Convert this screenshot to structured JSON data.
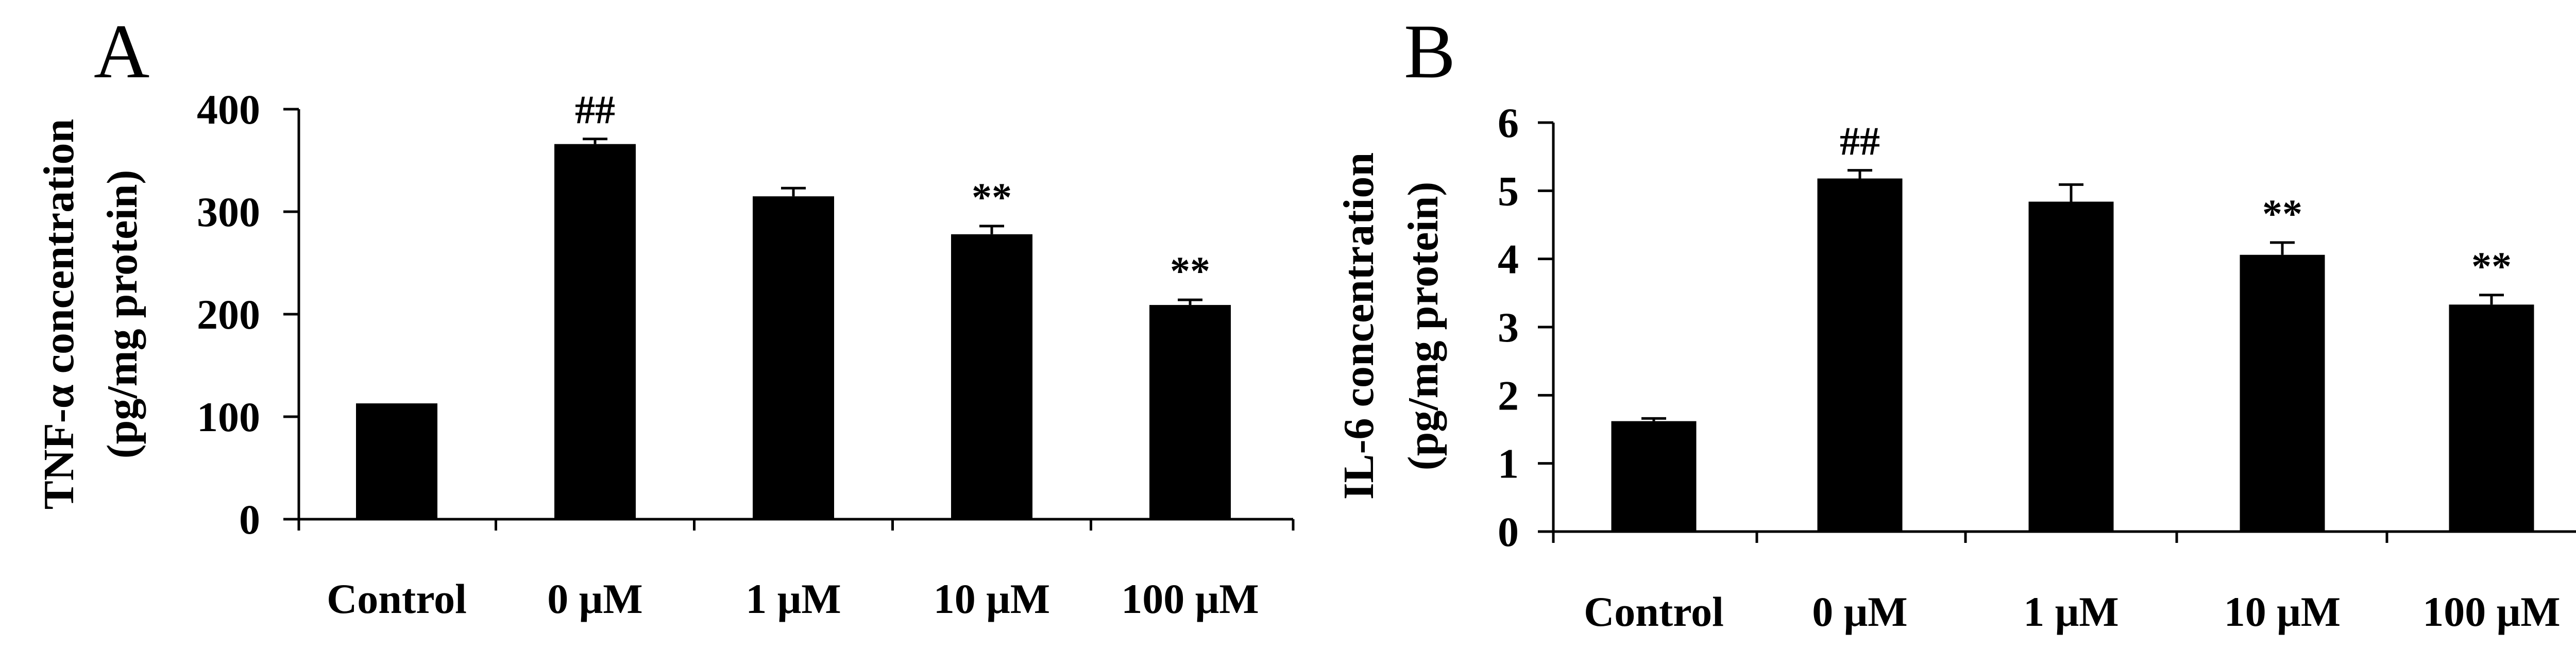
{
  "chart_data": [
    {
      "type": "bar",
      "panel_label": "A",
      "title": "",
      "xlabel": "",
      "ylabel_lines": [
        "TNF-α concentration",
        "(pg/mg protein)"
      ],
      "categories": [
        "Control",
        "0 μM",
        "1 μM",
        "10 μM",
        "100 μM"
      ],
      "values": [
        113,
        366,
        315,
        278,
        209
      ],
      "errors": [
        0,
        5,
        8,
        8,
        5
      ],
      "annotations": [
        "",
        "##",
        "",
        "**",
        "**"
      ],
      "ylim": [
        0,
        400
      ],
      "yticks": [
        0,
        100,
        200,
        300,
        400
      ],
      "bar_color": "#000000",
      "grid": false,
      "legend": "none"
    },
    {
      "type": "bar",
      "panel_label": "B",
      "title": "",
      "xlabel": "",
      "ylabel_lines": [
        "IL-6 concentration",
        "(pg/mg protein)"
      ],
      "categories": [
        "Control",
        "0 μM",
        "1 μM",
        "10 μM",
        "100 μM"
      ],
      "values": [
        1.62,
        5.18,
        4.84,
        4.06,
        3.33
      ],
      "errors": [
        0.04,
        0.12,
        0.25,
        0.18,
        0.14
      ],
      "annotations": [
        "",
        "##",
        "",
        "**",
        "**"
      ],
      "ylim": [
        0,
        6
      ],
      "yticks": [
        0,
        1,
        2,
        3,
        4,
        5,
        6
      ],
      "bar_color": "#000000",
      "grid": false,
      "legend": "none"
    }
  ]
}
